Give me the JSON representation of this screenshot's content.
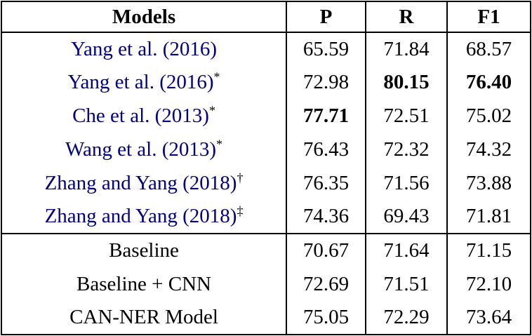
{
  "colors": {
    "citation": "#000080",
    "text": "#000000",
    "border": "#000000",
    "background": "#ffffff"
  },
  "table": {
    "headers": [
      "Models",
      "P",
      "R",
      "F1"
    ],
    "rows": [
      {
        "name": "Yang et al. (2016)",
        "sup": "",
        "p": "65.59",
        "r": "71.84",
        "f1": "68.57",
        "bold_p": false,
        "bold_r": false,
        "bold_f1": false
      },
      {
        "name": "Yang et al. (2016)",
        "sup": "*",
        "p": "72.98",
        "r": "80.15",
        "f1": "76.40",
        "bold_p": false,
        "bold_r": true,
        "bold_f1": true
      },
      {
        "name": "Che et al. (2013)",
        "sup": "*",
        "p": "77.71",
        "r": "72.51",
        "f1": "75.02",
        "bold_p": true,
        "bold_r": false,
        "bold_f1": false
      },
      {
        "name": "Wang et al. (2013)",
        "sup": "*",
        "p": "76.43",
        "r": "72.32",
        "f1": "74.32",
        "bold_p": false,
        "bold_r": false,
        "bold_f1": false
      },
      {
        "name": "Zhang and Yang (2018)",
        "sup": "†",
        "p": "76.35",
        "r": "71.56",
        "f1": "73.88",
        "bold_p": false,
        "bold_r": false,
        "bold_f1": false
      },
      {
        "name": "Zhang and Yang (2018)",
        "sup": "‡",
        "p": "74.36",
        "r": "69.43",
        "f1": "71.81",
        "bold_p": false,
        "bold_r": false,
        "bold_f1": false
      },
      {
        "name": "Baseline",
        "sup": "",
        "p": "70.67",
        "r": "71.64",
        "f1": "71.15",
        "bold_p": false,
        "bold_r": false,
        "bold_f1": false
      },
      {
        "name": "Baseline + CNN",
        "sup": "",
        "p": "72.69",
        "r": "71.51",
        "f1": "72.10",
        "bold_p": false,
        "bold_r": false,
        "bold_f1": false
      },
      {
        "name": "CAN-NER Model",
        "sup": "",
        "p": "75.05",
        "r": "72.29",
        "f1": "73.64",
        "bold_p": false,
        "bold_r": false,
        "bold_f1": false
      }
    ]
  }
}
